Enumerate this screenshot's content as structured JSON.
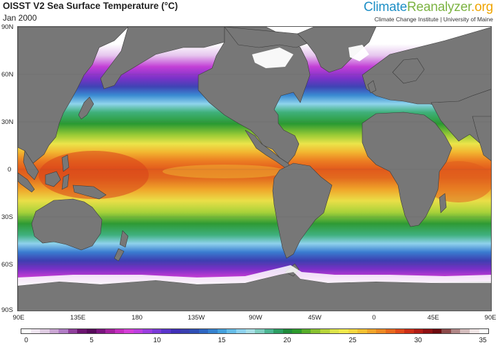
{
  "header": {
    "title": "OISST V2 Sea Surface Temperature (°C)",
    "subtitle": "Jan 2000"
  },
  "brand": {
    "part1": "Climate",
    "part2": "Reanalyzer",
    "part3": ".org",
    "tagline": "Climate Change Institute | University of Maine"
  },
  "map": {
    "lat_labels": [
      "90N",
      "60N",
      "30N",
      "0",
      "30S",
      "60S",
      "90S"
    ],
    "lon_labels": [
      "90E",
      "135E",
      "180",
      "135W",
      "90W",
      "45W",
      "0",
      "45E",
      "90E"
    ],
    "land_color": "#777777",
    "ice_color": "#ffffff"
  },
  "colorbar": {
    "ticks": [
      "0",
      "5",
      "10",
      "15",
      "20",
      "25",
      "30",
      "35"
    ],
    "colors": [
      "#ffffff",
      "#efe6f0",
      "#e0cde3",
      "#caa6d3",
      "#b07cc5",
      "#8f3f9c",
      "#6c1470",
      "#560a5a",
      "#7a147e",
      "#a3219e",
      "#c52ec0",
      "#d53fd8",
      "#bd3fe0",
      "#9b3ee0",
      "#7a3ad8",
      "#5a35cc",
      "#4030b8",
      "#3a3fb0",
      "#2f4fb5",
      "#2e66c2",
      "#3582cf",
      "#44a0dc",
      "#66bde8",
      "#8ed2ee",
      "#a9dfe6",
      "#7fcec0",
      "#4cb592",
      "#2c9e62",
      "#1f8a3a",
      "#2c9a2c",
      "#56ad2a",
      "#88c230",
      "#b8d53a",
      "#dde44a",
      "#f0ea4c",
      "#f3d840",
      "#f2c232",
      "#f0a52a",
      "#ed8a24",
      "#e86a1e",
      "#e04a1a",
      "#cc2e16",
      "#b01c14",
      "#8e1012",
      "#6c0a0e",
      "#8c4a4a",
      "#b08686",
      "#d4bdbd",
      "#f0e6e6",
      "#ffffff"
    ]
  }
}
